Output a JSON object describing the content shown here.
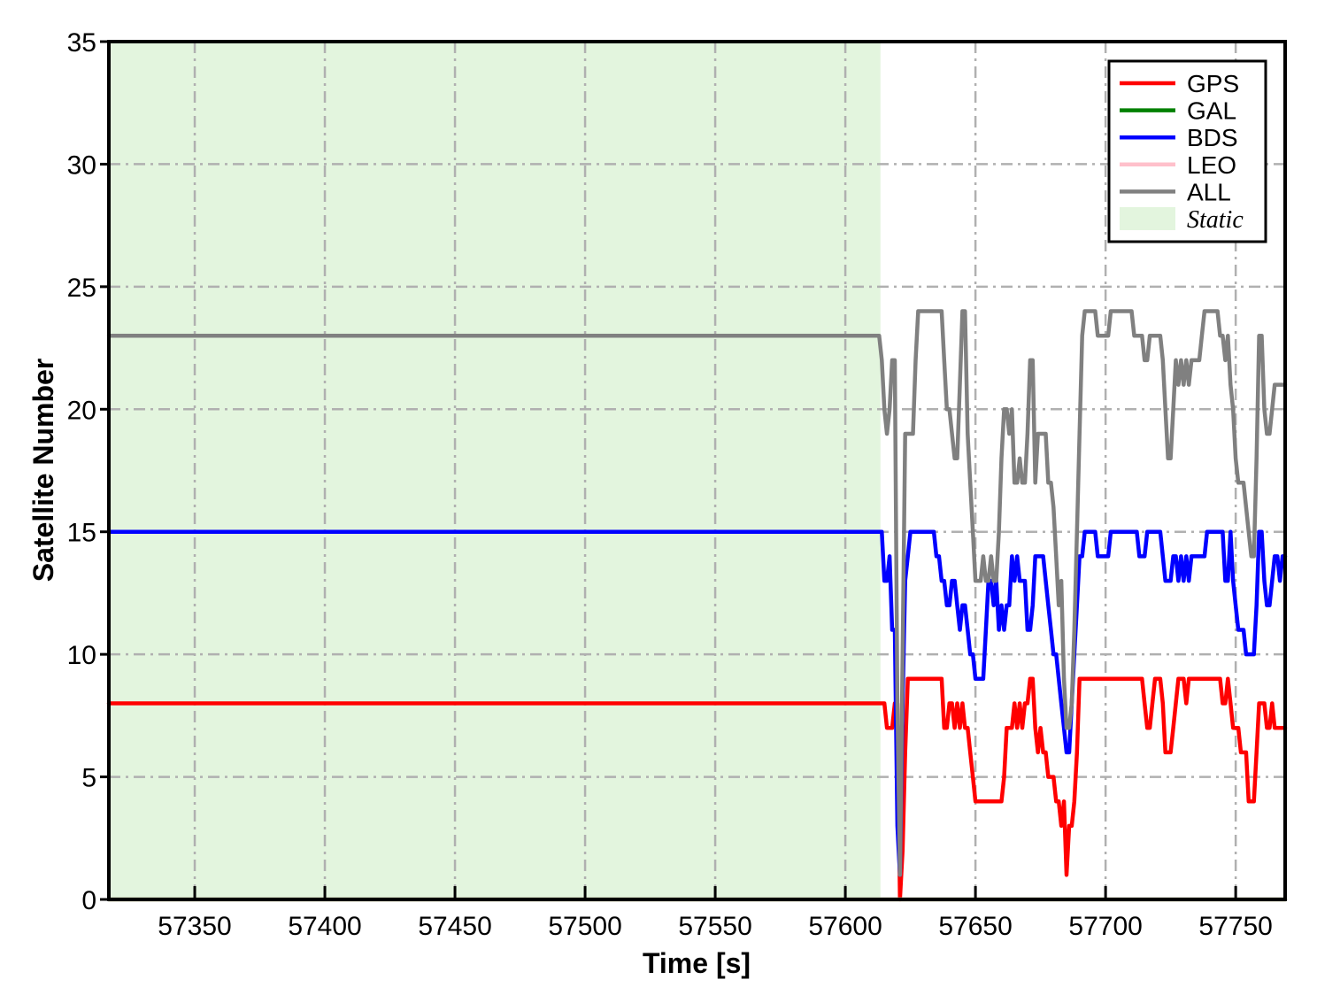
{
  "page": {
    "background": "#ffffff"
  },
  "chart_data": {
    "type": "line",
    "title": "",
    "xlabel": "Time [s]",
    "ylabel": "Satellite Number",
    "xlim": [
      57317,
      57769
    ],
    "ylim": [
      0,
      35
    ],
    "x_ticks": [
      57350,
      57400,
      57450,
      57500,
      57550,
      57600,
      57650,
      57700,
      57750
    ],
    "y_ticks": [
      0,
      5,
      10,
      15,
      20,
      25,
      30,
      35
    ],
    "grid": {
      "style": "dash-dot",
      "color": "#b0b0b0"
    },
    "legend_position": "upper right",
    "static_region": {
      "label": "Static",
      "x_start": 57317,
      "x_end": 57613.5,
      "color": "#e3f5de"
    },
    "flat_phase": {
      "t_start": 57317,
      "t_end": 57613,
      "values": {
        "GPS": 8,
        "GAL": 0,
        "BDS": 15,
        "LEO": 0,
        "ALL": 23
      }
    },
    "dynamic_t0": 57613,
    "dynamic_dt": 1,
    "series": [
      {
        "name": "GPS",
        "color": "#ff0000",
        "flat_value": 8,
        "dynamic": [
          8,
          8,
          8,
          7,
          7,
          7,
          8,
          8,
          0,
          2,
          6,
          9,
          9,
          9,
          9,
          9,
          9,
          9,
          9,
          9,
          9,
          9,
          9,
          9,
          9,
          7,
          7,
          8,
          8,
          7,
          8,
          7,
          8,
          7,
          7,
          6,
          5,
          4,
          4,
          4,
          4,
          4,
          4,
          4,
          4,
          4,
          4,
          4,
          5,
          7,
          7,
          7,
          8,
          7,
          8,
          7,
          8,
          8,
          9,
          9,
          7,
          6,
          7,
          6,
          6,
          5,
          5,
          5,
          4,
          4,
          3,
          4,
          1,
          3,
          3,
          4,
          6,
          9,
          9,
          9,
          9,
          9,
          9,
          9,
          9,
          9,
          9,
          9,
          9,
          9,
          9,
          9,
          9,
          9,
          9,
          9,
          9,
          9,
          9,
          9,
          9,
          9,
          8,
          7,
          7,
          8,
          9,
          9,
          9,
          8,
          6,
          6,
          6,
          7,
          8,
          9,
          9,
          9,
          8,
          9,
          9,
          9,
          9,
          9,
          9,
          9,
          9,
          9,
          9,
          9,
          9,
          9,
          8,
          8,
          9,
          8,
          7,
          7,
          7,
          6,
          6,
          6,
          4,
          4,
          4,
          6,
          8,
          8,
          8,
          7,
          7,
          8,
          7,
          7,
          7,
          7
        ]
      },
      {
        "name": "GAL",
        "color": "#008000",
        "flat_value": 0,
        "dynamic": []
      },
      {
        "name": "BDS",
        "color": "#0000ff",
        "flat_value": 15,
        "dynamic": [
          15,
          15,
          13,
          13,
          14,
          11,
          11,
          3,
          1,
          8,
          13,
          14,
          15,
          15,
          15,
          15,
          15,
          15,
          15,
          15,
          15,
          15,
          14,
          14,
          13,
          13,
          12,
          12,
          13,
          13,
          12,
          11,
          12,
          12,
          11,
          10,
          10,
          9,
          9,
          9,
          9,
          11,
          13,
          13,
          12,
          13,
          11,
          12,
          11,
          12,
          12,
          14,
          13,
          14,
          13,
          13,
          13,
          11,
          11,
          12,
          14,
          14,
          14,
          14,
          13,
          12,
          11,
          10,
          10,
          9,
          8,
          7,
          6,
          6,
          8,
          10,
          12,
          14,
          14,
          15,
          15,
          15,
          15,
          15,
          14,
          14,
          14,
          14,
          14,
          15,
          15,
          15,
          15,
          15,
          15,
          15,
          15,
          15,
          15,
          15,
          14,
          14,
          14,
          15,
          15,
          15,
          15,
          15,
          15,
          14,
          13,
          13,
          13,
          14,
          14,
          13,
          14,
          13,
          14,
          13,
          14,
          14,
          14,
          14,
          14,
          14,
          15,
          15,
          15,
          15,
          15,
          15,
          15,
          13,
          13,
          15,
          13,
          12,
          11,
          11,
          11,
          10,
          10,
          10,
          10,
          12,
          15,
          15,
          13,
          12,
          12,
          13,
          14,
          14,
          13,
          14
        ]
      },
      {
        "name": "LEO",
        "color": "#ffc0cb",
        "flat_value": 0,
        "dynamic": []
      },
      {
        "name": "ALL",
        "color": "#808080",
        "flat_value": 23,
        "dynamic": [
          23,
          22,
          20,
          19,
          20,
          22,
          22,
          8,
          1,
          10,
          19,
          19,
          19,
          19,
          22,
          24,
          24,
          24,
          24,
          24,
          24,
          24,
          24,
          24,
          24,
          22,
          20,
          20,
          19,
          18,
          18,
          21,
          24,
          24,
          19,
          17,
          15,
          13,
          13,
          13,
          14,
          13,
          13,
          14,
          13,
          13,
          15,
          18,
          20,
          20,
          19,
          20,
          17,
          17,
          18,
          17,
          17,
          19,
          22,
          22,
          17,
          19,
          19,
          19,
          19,
          17,
          17,
          16,
          14,
          12,
          13,
          9,
          7,
          7,
          8,
          11,
          15,
          19,
          23,
          24,
          24,
          24,
          24,
          24,
          23,
          23,
          23,
          23,
          23,
          24,
          24,
          24,
          24,
          24,
          24,
          24,
          24,
          24,
          23,
          23,
          23,
          23,
          22,
          22,
          23,
          23,
          23,
          23,
          23,
          22,
          20,
          18,
          18,
          20,
          22,
          21,
          22,
          21,
          22,
          21,
          22,
          22,
          22,
          22,
          23,
          24,
          24,
          24,
          24,
          24,
          24,
          23,
          23,
          22,
          23,
          21,
          20,
          18,
          17,
          17,
          17,
          16,
          15,
          14,
          14,
          18,
          23,
          23,
          20,
          19,
          19,
          20,
          21,
          21,
          21,
          21
        ]
      }
    ],
    "legend": [
      {
        "label": "GPS",
        "type": "line",
        "color": "#ff0000",
        "italic": false
      },
      {
        "label": "GAL",
        "type": "line",
        "color": "#008000",
        "italic": false
      },
      {
        "label": "BDS",
        "type": "line",
        "color": "#0000ff",
        "italic": false
      },
      {
        "label": "LEO",
        "type": "line",
        "color": "#ffc0cb",
        "italic": false
      },
      {
        "label": "ALL",
        "type": "line",
        "color": "#808080",
        "italic": false
      },
      {
        "label": "Static",
        "type": "patch",
        "color": "#e3f5de",
        "italic": true
      }
    ]
  }
}
